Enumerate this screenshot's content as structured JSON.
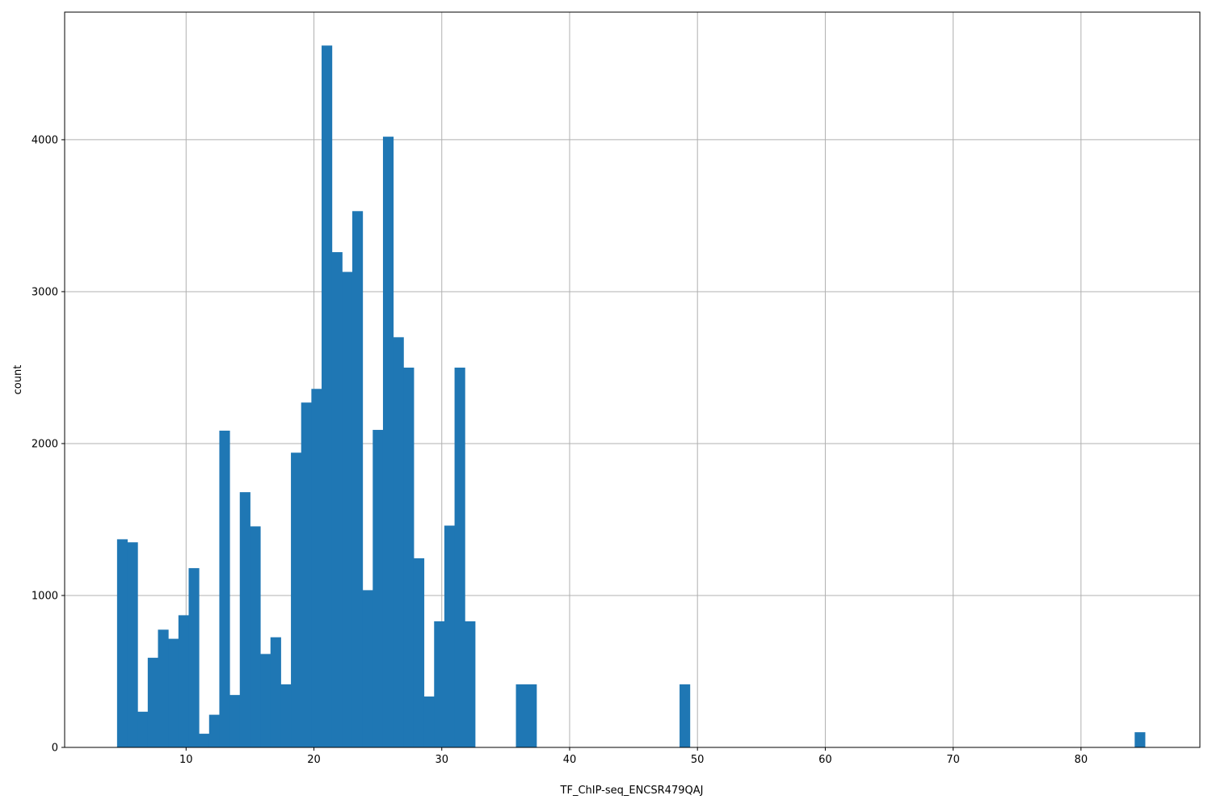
{
  "chart_data": {
    "type": "bar",
    "title": "",
    "xlabel": "TF_ChIP-seq_ENCSR479QAJ",
    "ylabel": "count",
    "xlim": [
      0.5,
      89.3
    ],
    "ylim": [
      0,
      4840
    ],
    "grid": true,
    "bar_color": "#1f77b4",
    "x_ticks": [
      10,
      20,
      30,
      40,
      50,
      60,
      70,
      80
    ],
    "y_ticks": [
      0,
      1000,
      2000,
      3000,
      4000
    ],
    "bins": [
      {
        "x0": 4.6,
        "x1": 5.4,
        "count": 1370
      },
      {
        "x0": 5.4,
        "x1": 6.2,
        "count": 1350
      },
      {
        "x0": 6.2,
        "x1": 7.0,
        "count": 235
      },
      {
        "x0": 7.0,
        "x1": 7.8,
        "count": 590
      },
      {
        "x0": 7.8,
        "x1": 8.6,
        "count": 775
      },
      {
        "x0": 8.6,
        "x1": 9.4,
        "count": 715
      },
      {
        "x0": 9.4,
        "x1": 10.2,
        "count": 870
      },
      {
        "x0": 10.2,
        "x1": 11.0,
        "count": 1180
      },
      {
        "x0": 11.0,
        "x1": 11.8,
        "count": 90
      },
      {
        "x0": 11.8,
        "x1": 12.6,
        "count": 215
      },
      {
        "x0": 12.6,
        "x1": 13.4,
        "count": 2085
      },
      {
        "x0": 13.4,
        "x1": 14.2,
        "count": 345
      },
      {
        "x0": 14.2,
        "x1": 15.0,
        "count": 1680
      },
      {
        "x0": 15.0,
        "x1": 15.8,
        "count": 1455
      },
      {
        "x0": 15.8,
        "x1": 16.6,
        "count": 615
      },
      {
        "x0": 16.6,
        "x1": 17.4,
        "count": 725
      },
      {
        "x0": 17.4,
        "x1": 18.2,
        "count": 415
      },
      {
        "x0": 18.2,
        "x1": 19.0,
        "count": 1940
      },
      {
        "x0": 19.0,
        "x1": 19.8,
        "count": 2270
      },
      {
        "x0": 19.8,
        "x1": 20.6,
        "count": 2360
      },
      {
        "x0": 20.6,
        "x1": 21.4,
        "count": 4620
      },
      {
        "x0": 21.4,
        "x1": 22.2,
        "count": 3260
      },
      {
        "x0": 22.2,
        "x1": 23.0,
        "count": 3130
      },
      {
        "x0": 23.0,
        "x1": 23.8,
        "count": 3530
      },
      {
        "x0": 23.8,
        "x1": 24.6,
        "count": 1035
      },
      {
        "x0": 24.6,
        "x1": 25.4,
        "count": 2090
      },
      {
        "x0": 25.4,
        "x1": 26.2,
        "count": 4020
      },
      {
        "x0": 26.2,
        "x1": 27.0,
        "count": 2700
      },
      {
        "x0": 27.0,
        "x1": 27.8,
        "count": 2500
      },
      {
        "x0": 27.8,
        "x1": 28.6,
        "count": 1245
      },
      {
        "x0": 28.6,
        "x1": 29.4,
        "count": 335
      },
      {
        "x0": 29.4,
        "x1": 30.2,
        "count": 830
      },
      {
        "x0": 30.2,
        "x1": 31.0,
        "count": 1460
      },
      {
        "x0": 31.0,
        "x1": 31.8,
        "count": 2500
      },
      {
        "x0": 31.8,
        "x1": 32.6,
        "count": 830
      },
      {
        "x0": 35.8,
        "x1": 36.6,
        "count": 415
      },
      {
        "x0": 36.6,
        "x1": 37.4,
        "count": 415
      },
      {
        "x0": 48.6,
        "x1": 49.4,
        "count": 415
      },
      {
        "x0": 84.2,
        "x1": 85.0,
        "count": 100
      }
    ]
  }
}
